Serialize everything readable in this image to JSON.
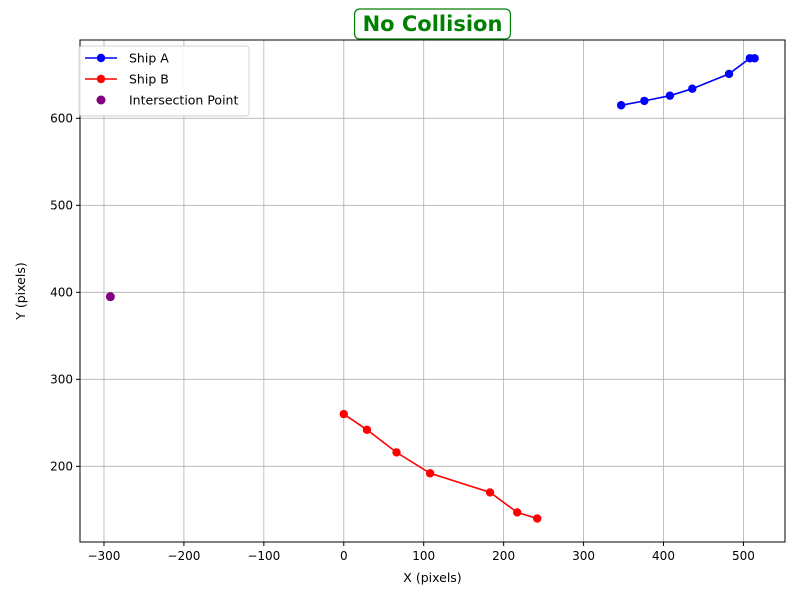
{
  "chart_data": {
    "type": "line",
    "title": "No Collision",
    "title_color": "#008000",
    "xlabel": "X (pixels)",
    "ylabel": "Y (pixels)",
    "xlim": [
      -330,
      552
    ],
    "ylim": [
      113,
      690
    ],
    "x_ticks": [
      -300,
      -200,
      -100,
      0,
      100,
      200,
      300,
      400,
      500
    ],
    "y_ticks": [
      200,
      300,
      400,
      500,
      600
    ],
    "grid": true,
    "legend_position": "top-left",
    "series": [
      {
        "name": "Ship A",
        "color": "#0000ff",
        "kind": "line",
        "points": [
          [
            347,
            615
          ],
          [
            376,
            620
          ],
          [
            408,
            626
          ],
          [
            436,
            634
          ],
          [
            482,
            651
          ],
          [
            508,
            669
          ],
          [
            514,
            669
          ]
        ]
      },
      {
        "name": "Ship B",
        "color": "#ff0000",
        "kind": "line",
        "points": [
          [
            0,
            260
          ],
          [
            29,
            242
          ],
          [
            66,
            216
          ],
          [
            108,
            192
          ],
          [
            183,
            170
          ],
          [
            217,
            147
          ],
          [
            242,
            140
          ]
        ]
      },
      {
        "name": "Intersection Point",
        "color": "#800080",
        "kind": "scatter",
        "points": [
          [
            -292,
            395
          ]
        ]
      }
    ]
  }
}
